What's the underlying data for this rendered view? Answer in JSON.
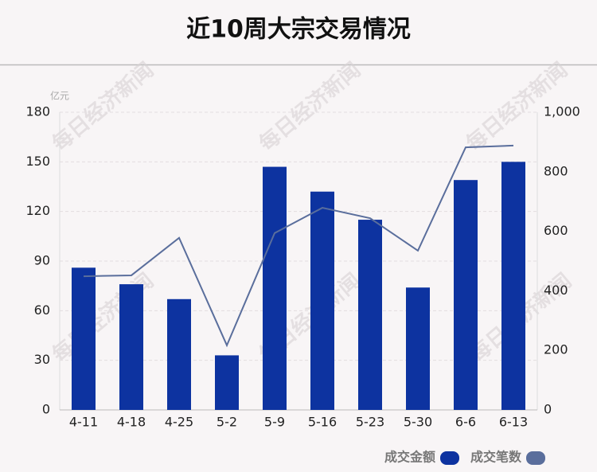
{
  "chart_data": {
    "type": "bar-line",
    "title": "近10周大宗交易情况",
    "y_unit": "亿元",
    "watermark": "每日经济新闻",
    "categories": [
      "4-11",
      "4-18",
      "4-25",
      "5-2",
      "5-9",
      "5-16",
      "5-23",
      "5-30",
      "6-6",
      "6-13"
    ],
    "series": [
      {
        "name": "成交金额",
        "type": "bar",
        "color": "#0d33a0",
        "values": [
          86,
          76,
          67,
          33,
          147,
          132,
          115,
          74,
          139,
          150
        ]
      },
      {
        "name": "成交笔数",
        "type": "line",
        "axis": "y2",
        "color": "#5a6e9c",
        "values": [
          449,
          452,
          578,
          217,
          594,
          679,
          644,
          535,
          882,
          888
        ]
      }
    ],
    "ylim": [
      0,
      180
    ],
    "yticks": [
      0,
      30,
      60,
      90,
      120,
      150,
      180
    ],
    "y2lim": [
      0,
      1000
    ],
    "y2ticks": [
      0,
      200,
      400,
      600,
      800,
      {
        "value": 1000,
        "label": "1,000"
      }
    ],
    "grid": true,
    "legend": "bottom-right"
  }
}
